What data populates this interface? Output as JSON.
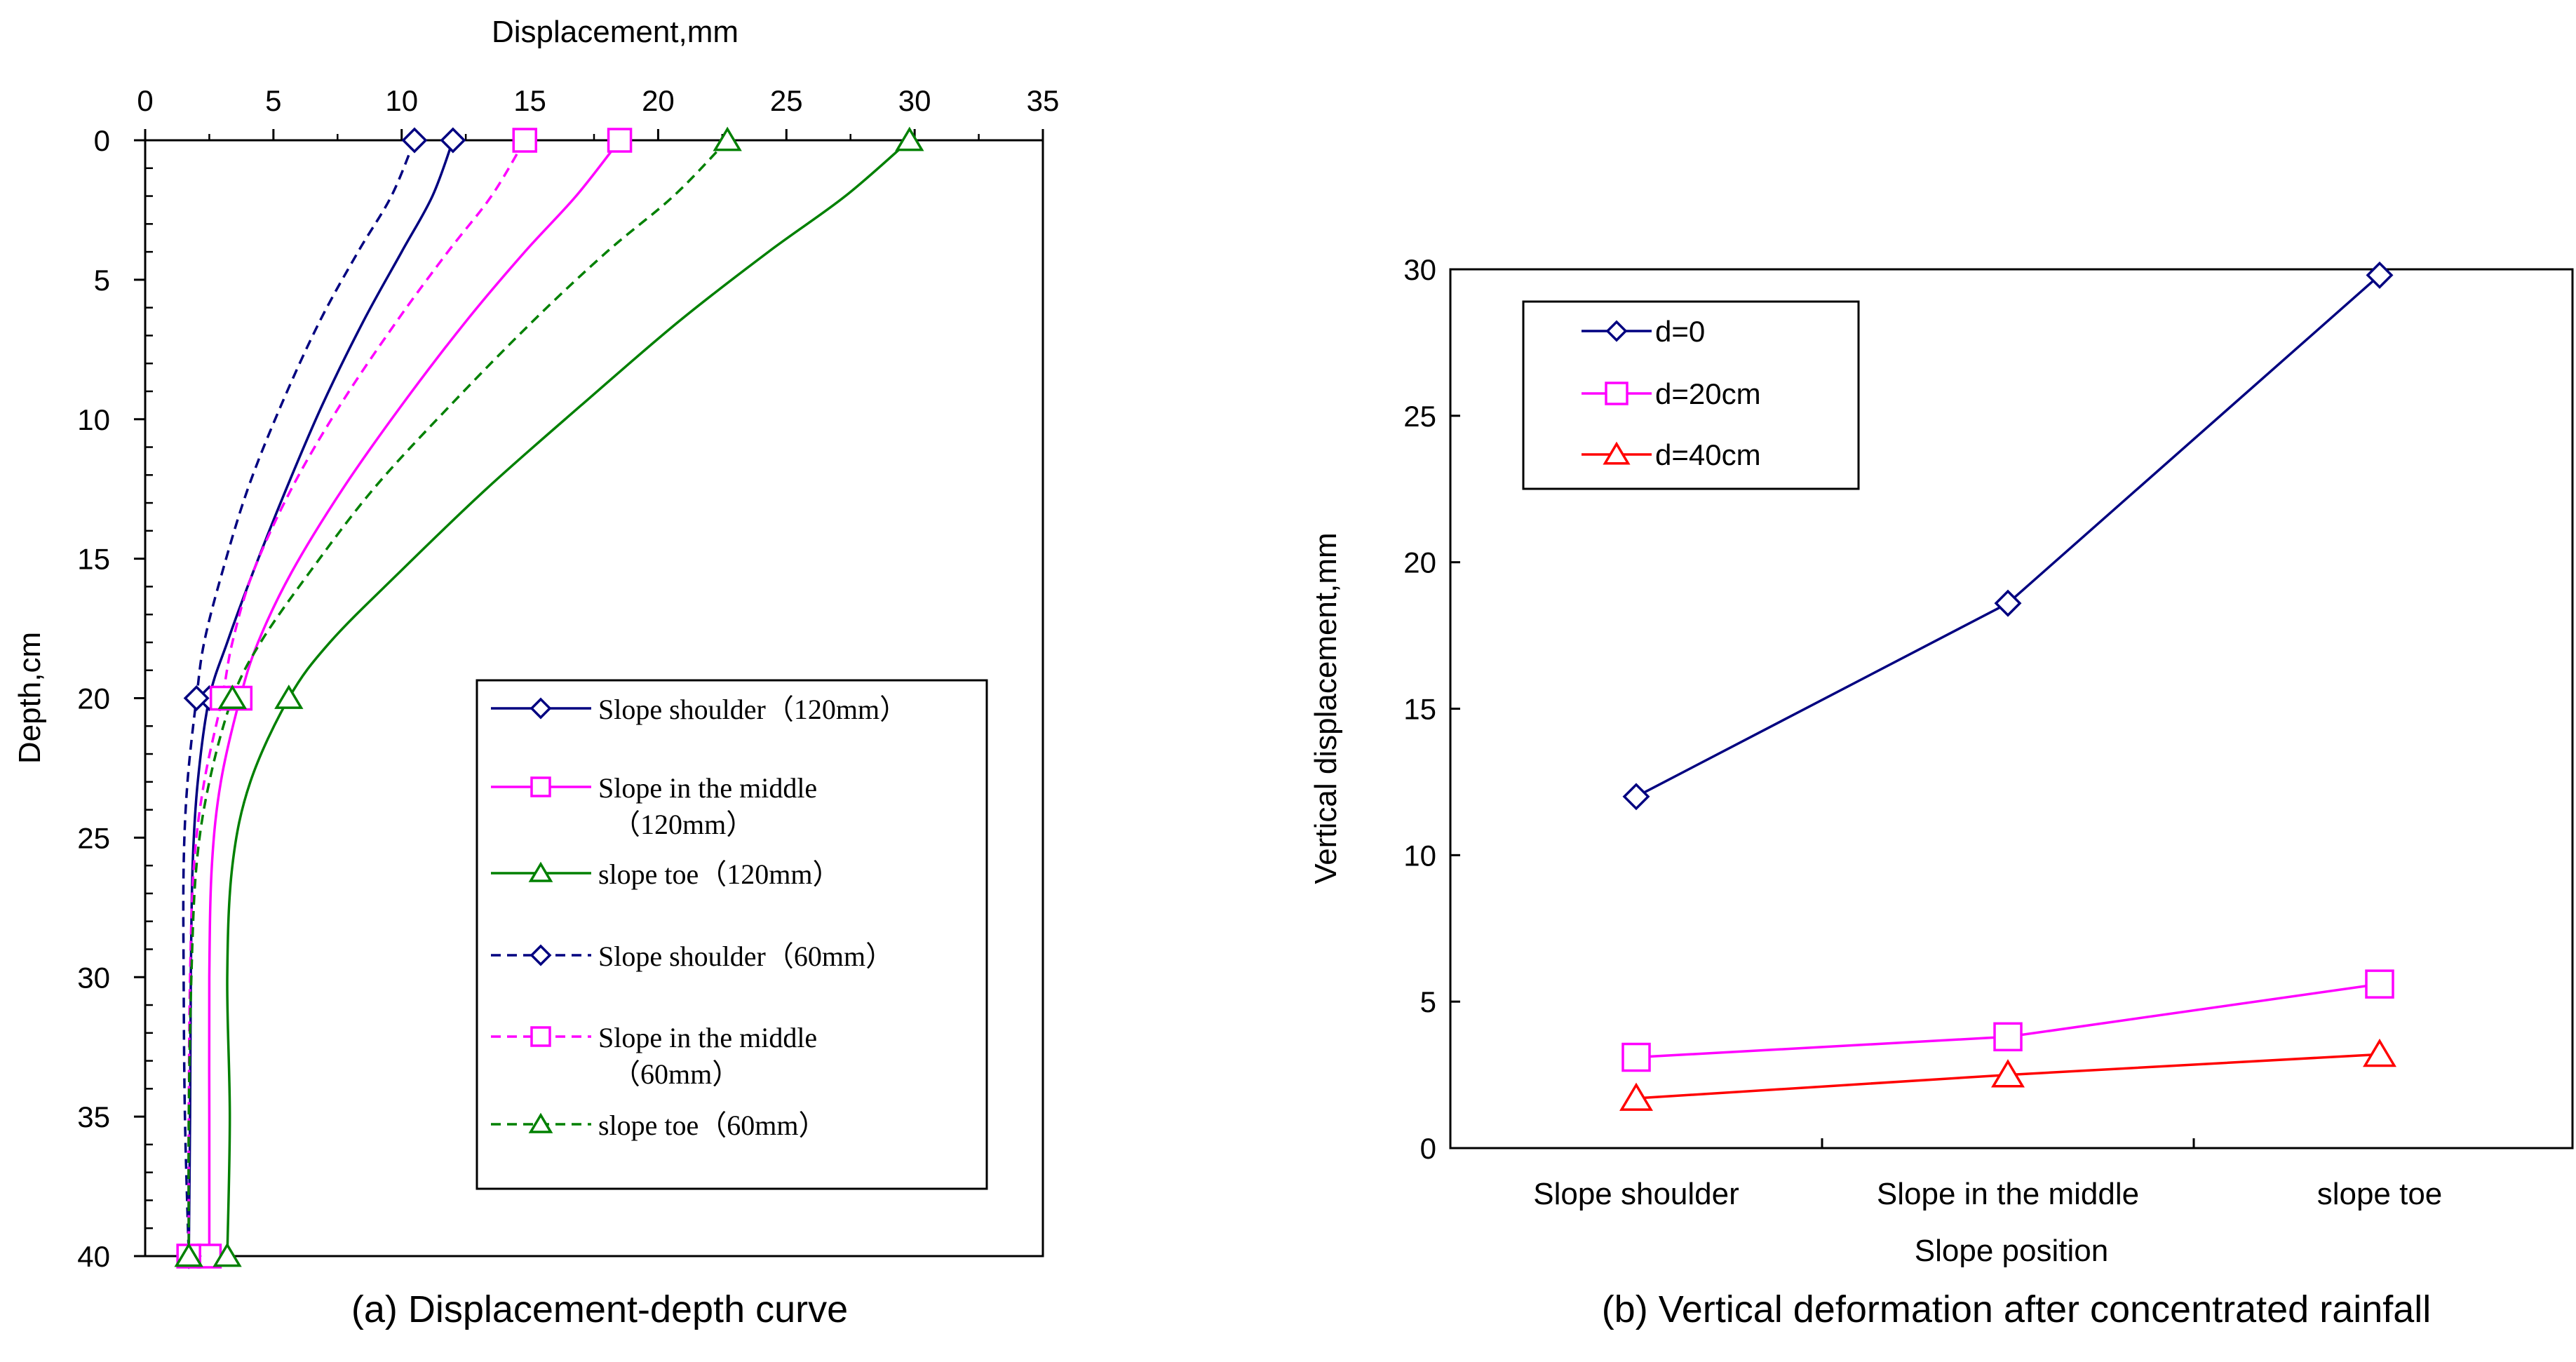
{
  "chart_data": [
    {
      "type": "line",
      "title": "(a) Displacement-depth curve",
      "xlabel": "Displacement,mm",
      "ylabel": "Depth,cm",
      "xlim": [
        0,
        35
      ],
      "ylim": [
        0,
        40
      ],
      "x_ticks": [
        0,
        5,
        10,
        15,
        20,
        25,
        30,
        35
      ],
      "y_ticks": [
        0,
        5,
        10,
        15,
        20,
        25,
        30,
        35,
        40
      ],
      "x_axis_position": "top",
      "y_axis_inverted": true,
      "grid": false,
      "legend_position": "lower-right",
      "series": [
        {
          "name": "Slope shoulder（120mm）",
          "color": "#000080",
          "dash": "solid",
          "marker": "diamond",
          "markers": [
            {
              "x": 12.0,
              "y": 0
            },
            {
              "x": 2.5,
              "y": 20
            },
            {
              "x": 1.7,
              "y": 40
            }
          ],
          "curve": [
            [
              12.0,
              0
            ],
            [
              11.2,
              2
            ],
            [
              10.0,
              4
            ],
            [
              8.5,
              6.5
            ],
            [
              6.9,
              9.5
            ],
            [
              5.5,
              12.5
            ],
            [
              4.2,
              15.5
            ],
            [
              3.2,
              18
            ],
            [
              2.5,
              20
            ],
            [
              2.05,
              23
            ],
            [
              1.85,
              26
            ],
            [
              1.78,
              30
            ],
            [
              1.75,
              35
            ],
            [
              1.7,
              40
            ]
          ]
        },
        {
          "name": "Slope in the middle（120mm）",
          "color": "#FF00FF",
          "dash": "solid",
          "marker": "square",
          "markers": [
            {
              "x": 18.5,
              "y": 0
            },
            {
              "x": 3.7,
              "y": 20
            },
            {
              "x": 2.5,
              "y": 40
            }
          ],
          "curve": [
            [
              18.5,
              0
            ],
            [
              16.8,
              2
            ],
            [
              14.8,
              4
            ],
            [
              12.5,
              6.5
            ],
            [
              10.0,
              9.5
            ],
            [
              7.7,
              12.5
            ],
            [
              5.7,
              15.5
            ],
            [
              4.4,
              18
            ],
            [
              3.7,
              20
            ],
            [
              2.95,
              23
            ],
            [
              2.6,
              26
            ],
            [
              2.5,
              30
            ],
            [
              2.5,
              35
            ],
            [
              2.5,
              40
            ]
          ]
        },
        {
          "name": "slope toe（120mm）",
          "color": "#008000",
          "dash": "solid",
          "marker": "triangle",
          "markers": [
            {
              "x": 29.8,
              "y": 0
            },
            {
              "x": 5.6,
              "y": 20
            },
            {
              "x": 3.2,
              "y": 40
            }
          ],
          "curve": [
            [
              29.8,
              0
            ],
            [
              27.3,
              2
            ],
            [
              24.3,
              4
            ],
            [
              20.8,
              6.5
            ],
            [
              17.0,
              9.5
            ],
            [
              13.3,
              12.5
            ],
            [
              9.9,
              15.5
            ],
            [
              7.2,
              18
            ],
            [
              5.6,
              20
            ],
            [
              4.1,
              23
            ],
            [
              3.4,
              26
            ],
            [
              3.2,
              30
            ],
            [
              3.3,
              35
            ],
            [
              3.2,
              40
            ]
          ]
        },
        {
          "name": "Slope shoulder（60mm）",
          "color": "#000080",
          "dash": "dashed",
          "marker": "diamond",
          "markers": [
            {
              "x": 10.5,
              "y": 0
            },
            {
              "x": 2.0,
              "y": 20
            },
            {
              "x": 1.7,
              "y": 40
            }
          ],
          "curve": [
            [
              10.5,
              0
            ],
            [
              9.6,
              2
            ],
            [
              8.3,
              4
            ],
            [
              6.8,
              6.5
            ],
            [
              5.3,
              9.5
            ],
            [
              4.0,
              12.5
            ],
            [
              3.0,
              15.5
            ],
            [
              2.3,
              18
            ],
            [
              2.0,
              20
            ],
            [
              1.65,
              23
            ],
            [
              1.5,
              26
            ],
            [
              1.5,
              30
            ],
            [
              1.55,
              35
            ],
            [
              1.7,
              40
            ]
          ]
        },
        {
          "name": "Slope in the middle（60mm）",
          "color": "#FF00FF",
          "dash": "dashed",
          "marker": "square",
          "markers": [
            {
              "x": 14.8,
              "y": 0
            },
            {
              "x": 3.0,
              "y": 20
            },
            {
              "x": 1.7,
              "y": 40
            }
          ],
          "curve": [
            [
              14.8,
              0
            ],
            [
              13.5,
              2
            ],
            [
              11.8,
              4
            ],
            [
              9.8,
              6.5
            ],
            [
              7.6,
              9.5
            ],
            [
              5.7,
              12.5
            ],
            [
              4.2,
              15.5
            ],
            [
              3.4,
              18
            ],
            [
              3.0,
              20
            ],
            [
              2.3,
              23
            ],
            [
              1.9,
              26
            ],
            [
              1.75,
              30
            ],
            [
              1.7,
              35
            ],
            [
              1.7,
              40
            ]
          ]
        },
        {
          "name": "slope toe（60mm）",
          "color": "#008000",
          "dash": "dashed",
          "marker": "triangle",
          "markers": [
            {
              "x": 22.7,
              "y": 0
            },
            {
              "x": 3.4,
              "y": 20
            },
            {
              "x": 1.7,
              "y": 40
            }
          ],
          "curve": [
            [
              22.7,
              0
            ],
            [
              20.6,
              2
            ],
            [
              18.0,
              4
            ],
            [
              15.1,
              6.5
            ],
            [
              11.9,
              9.5
            ],
            [
              8.9,
              12.5
            ],
            [
              6.4,
              15.5
            ],
            [
              4.5,
              18
            ],
            [
              3.4,
              20
            ],
            [
              2.5,
              23
            ],
            [
              2.0,
              26
            ],
            [
              1.8,
              30
            ],
            [
              1.7,
              35
            ],
            [
              1.7,
              40
            ]
          ]
        }
      ],
      "legend_labels": [
        [
          "Slope shoulder（120mm）"
        ],
        [
          "Slope in the middle",
          "（120mm）"
        ],
        [
          "slope toe（120mm）"
        ],
        [
          "Slope shoulder（60mm）"
        ],
        [
          "Slope in the middle",
          "（60mm）"
        ],
        [
          "slope toe（60mm）"
        ]
      ]
    },
    {
      "type": "line",
      "title": "(b) Vertical deformation after concentrated rainfall",
      "xlabel": "Slope position",
      "ylabel": "Vertical displacement,mm",
      "categories": [
        "Slope shoulder",
        "Slope in the middle",
        "slope toe"
      ],
      "ylim": [
        0,
        30
      ],
      "y_ticks": [
        0,
        5,
        10,
        15,
        20,
        25,
        30
      ],
      "grid": false,
      "legend_position": "top-left",
      "series": [
        {
          "name": "d=0",
          "color": "#000080",
          "marker": "diamond",
          "values": [
            12.0,
            18.6,
            29.8
          ]
        },
        {
          "name": "d=20cm",
          "color": "#FF00FF",
          "marker": "square",
          "values": [
            3.1,
            3.8,
            5.6
          ]
        },
        {
          "name": "d=40cm",
          "color": "#FF0000",
          "marker": "triangle",
          "values": [
            1.7,
            2.5,
            3.2
          ]
        }
      ]
    }
  ]
}
